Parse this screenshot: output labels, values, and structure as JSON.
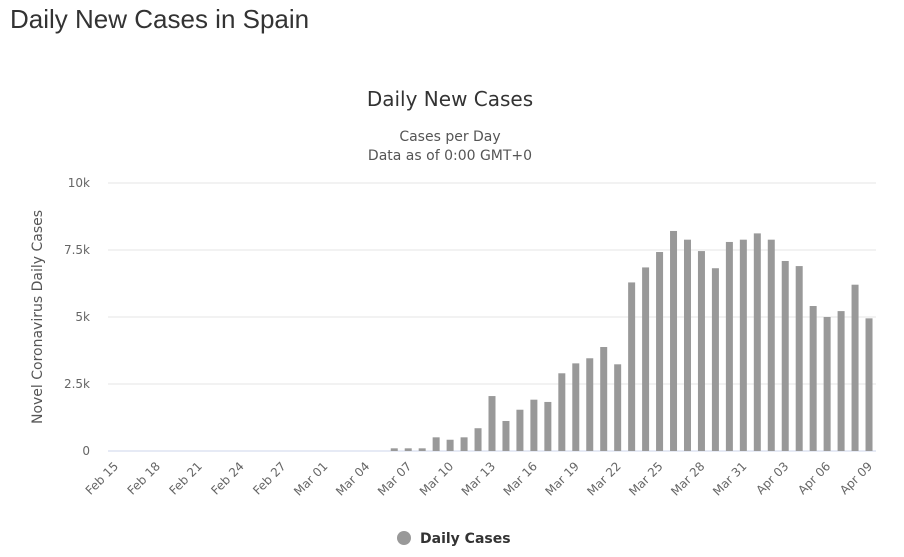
{
  "page_title": "Daily New Cases in Spain",
  "chart_data": {
    "type": "bar",
    "title": "Daily New Cases",
    "subtitle": [
      "Cases per Day",
      "Data as of 0:00 GMT+0"
    ],
    "xlabel": "",
    "ylabel": "Novel Coronavirus Daily Cases",
    "ylim": [
      0,
      10000
    ],
    "yticks": [
      0,
      2500,
      5000,
      7500,
      10000
    ],
    "ytick_labels": [
      "0",
      "2.5k",
      "5k",
      "7.5k",
      "10k"
    ],
    "grid": true,
    "legend": "bottom-center",
    "color": "#999999",
    "categories": [
      "Feb 15",
      "Feb 16",
      "Feb 17",
      "Feb 18",
      "Feb 19",
      "Feb 20",
      "Feb 21",
      "Feb 22",
      "Feb 23",
      "Feb 24",
      "Feb 25",
      "Feb 26",
      "Feb 27",
      "Feb 28",
      "Feb 29",
      "Mar 01",
      "Mar 02",
      "Mar 03",
      "Mar 04",
      "Mar 05",
      "Mar 06",
      "Mar 07",
      "Mar 08",
      "Mar 09",
      "Mar 10",
      "Mar 11",
      "Mar 12",
      "Mar 13",
      "Mar 14",
      "Mar 15",
      "Mar 16",
      "Mar 17",
      "Mar 18",
      "Mar 19",
      "Mar 20",
      "Mar 21",
      "Mar 22",
      "Mar 23",
      "Mar 24",
      "Mar 25",
      "Mar 26",
      "Mar 27",
      "Mar 28",
      "Mar 29",
      "Mar 30",
      "Mar 31",
      "Apr 01",
      "Apr 02",
      "Apr 03",
      "Apr 04",
      "Apr 05",
      "Apr 06",
      "Apr 07",
      "Apr 08",
      "Apr 09"
    ],
    "xtick_labels": [
      "Feb 15",
      "Feb 18",
      "Feb 21",
      "Feb 24",
      "Feb 27",
      "Mar 01",
      "Mar 04",
      "Mar 07",
      "Mar 10",
      "Mar 13",
      "Mar 16",
      "Mar 19",
      "Mar 22",
      "Mar 25",
      "Mar 28",
      "Mar 31",
      "Apr 03",
      "Apr 06",
      "Apr 09"
    ],
    "series": [
      {
        "name": "Daily Cases",
        "values": [
          0,
          0,
          0,
          0,
          0,
          0,
          0,
          0,
          0,
          0,
          0,
          0,
          0,
          0,
          0,
          0,
          0,
          0,
          0,
          0,
          100,
          100,
          100,
          510,
          420,
          510,
          850,
          2050,
          1120,
          1540,
          1915,
          1830,
          2900,
          3270,
          3460,
          3880,
          3235,
          6290,
          6850,
          7425,
          8210,
          7885,
          7460,
          6820,
          7800,
          7885,
          8120,
          7885,
          7090,
          6900,
          5410,
          5000,
          5220,
          6205,
          4950
        ]
      }
    ]
  }
}
